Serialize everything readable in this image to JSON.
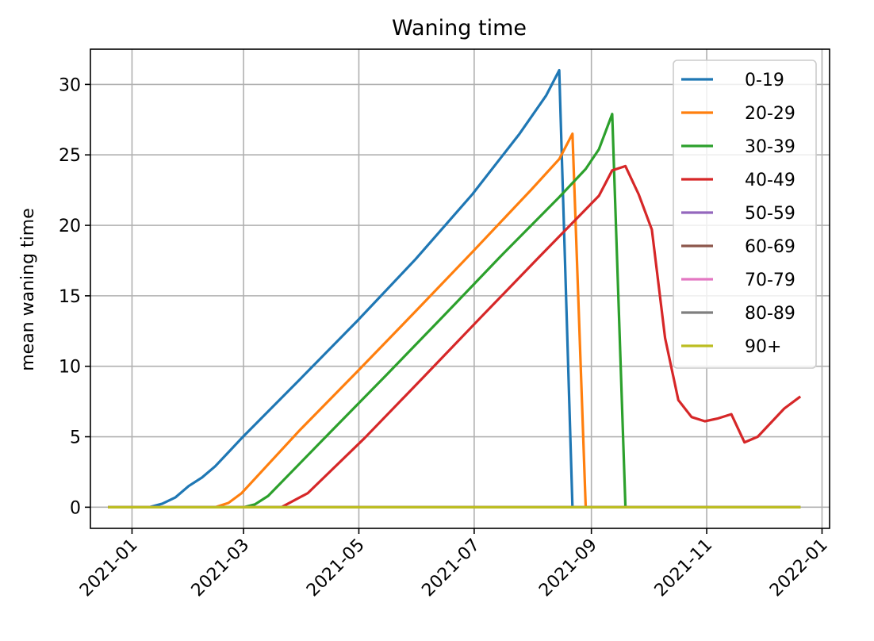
{
  "chart_data": {
    "type": "line",
    "title": "Waning time",
    "xlabel": "",
    "ylabel": "mean waning time",
    "x_ticks": [
      "2021-01",
      "2021-03",
      "2021-05",
      "2021-07",
      "2021-09",
      "2021-11",
      "2022-01"
    ],
    "y_ticks": [
      "0",
      "5",
      "10",
      "15",
      "20",
      "25",
      "30"
    ],
    "xlim": [
      "2020-12-10",
      "2022-01-05"
    ],
    "ylim": [
      -1.5,
      32.5
    ],
    "grid": true,
    "legend_position": "upper right",
    "series": [
      {
        "name": "0-19",
        "color": "#1f77b4",
        "points": [
          [
            "2020-12-20",
            0
          ],
          [
            "2021-01-10",
            0
          ],
          [
            "2021-01-17",
            0.25
          ],
          [
            "2021-01-24",
            0.7
          ],
          [
            "2021-01-31",
            1.5
          ],
          [
            "2021-02-07",
            2.1
          ],
          [
            "2021-02-14",
            2.9
          ],
          [
            "2021-02-21",
            3.9
          ],
          [
            "2021-02-28",
            4.9
          ],
          [
            "2021-03-31",
            9.1
          ],
          [
            "2021-04-30",
            13.2
          ],
          [
            "2021-05-31",
            17.6
          ],
          [
            "2021-06-30",
            22.2
          ],
          [
            "2021-07-25",
            26.5
          ],
          [
            "2021-08-08",
            29.2
          ],
          [
            "2021-08-15",
            31.0
          ],
          [
            "2021-08-22",
            0
          ],
          [
            "2021-12-20",
            0
          ]
        ]
      },
      {
        "name": "20-29",
        "color": "#ff7f0e",
        "points": [
          [
            "2020-12-20",
            0
          ],
          [
            "2021-02-14",
            0
          ],
          [
            "2021-02-21",
            0.3
          ],
          [
            "2021-02-28",
            1.0
          ],
          [
            "2021-03-31",
            5.5
          ],
          [
            "2021-04-30",
            9.6
          ],
          [
            "2021-05-31",
            13.9
          ],
          [
            "2021-06-30",
            18.1
          ],
          [
            "2021-07-31",
            22.5
          ],
          [
            "2021-08-15",
            24.7
          ],
          [
            "2021-08-22",
            26.5
          ],
          [
            "2021-08-29",
            0
          ],
          [
            "2021-12-20",
            0
          ]
        ]
      },
      {
        "name": "30-39",
        "color": "#2ca02c",
        "points": [
          [
            "2020-12-20",
            0
          ],
          [
            "2021-03-01",
            0
          ],
          [
            "2021-03-07",
            0.2
          ],
          [
            "2021-03-14",
            0.8
          ],
          [
            "2021-04-15",
            5.2
          ],
          [
            "2021-05-15",
            9.3
          ],
          [
            "2021-06-15",
            13.6
          ],
          [
            "2021-07-15",
            17.8
          ],
          [
            "2021-08-15",
            22.0
          ],
          [
            "2021-08-29",
            24.0
          ],
          [
            "2021-09-05",
            25.4
          ],
          [
            "2021-09-12",
            27.9
          ],
          [
            "2021-09-19",
            0
          ],
          [
            "2021-12-20",
            0
          ]
        ]
      },
      {
        "name": "40-49",
        "color": "#d62728",
        "points": [
          [
            "2020-12-20",
            0
          ],
          [
            "2021-03-21",
            0
          ],
          [
            "2021-04-04",
            1.0
          ],
          [
            "2021-05-04",
            4.9
          ],
          [
            "2021-06-04",
            9.2
          ],
          [
            "2021-07-04",
            13.4
          ],
          [
            "2021-08-04",
            17.7
          ],
          [
            "2021-09-05",
            22.1
          ],
          [
            "2021-09-12",
            23.9
          ],
          [
            "2021-09-19",
            24.2
          ],
          [
            "2021-09-26",
            22.2
          ],
          [
            "2021-10-03",
            19.7
          ],
          [
            "2021-10-10",
            12.0
          ],
          [
            "2021-10-17",
            7.6
          ],
          [
            "2021-10-24",
            6.4
          ],
          [
            "2021-10-31",
            6.1
          ],
          [
            "2021-11-07",
            6.3
          ],
          [
            "2021-11-14",
            6.6
          ],
          [
            "2021-11-21",
            4.6
          ],
          [
            "2021-11-28",
            5.0
          ],
          [
            "2021-12-12",
            7.0
          ],
          [
            "2021-12-20",
            7.8
          ]
        ]
      },
      {
        "name": "50-59",
        "color": "#9467bd",
        "points": [
          [
            "2020-12-20",
            0
          ],
          [
            "2021-12-20",
            0
          ]
        ]
      },
      {
        "name": "60-69",
        "color": "#8c564b",
        "points": [
          [
            "2020-12-20",
            0
          ],
          [
            "2021-12-20",
            0
          ]
        ]
      },
      {
        "name": "70-79",
        "color": "#e377c2",
        "points": [
          [
            "2020-12-20",
            0
          ],
          [
            "2021-12-20",
            0
          ]
        ]
      },
      {
        "name": "80-89",
        "color": "#7f7f7f",
        "points": [
          [
            "2020-12-20",
            0
          ],
          [
            "2021-12-20",
            0
          ]
        ]
      },
      {
        "name": "90+",
        "color": "#bcbd22",
        "points": [
          [
            "2020-12-20",
            0
          ],
          [
            "2021-12-20",
            0
          ]
        ]
      }
    ]
  }
}
